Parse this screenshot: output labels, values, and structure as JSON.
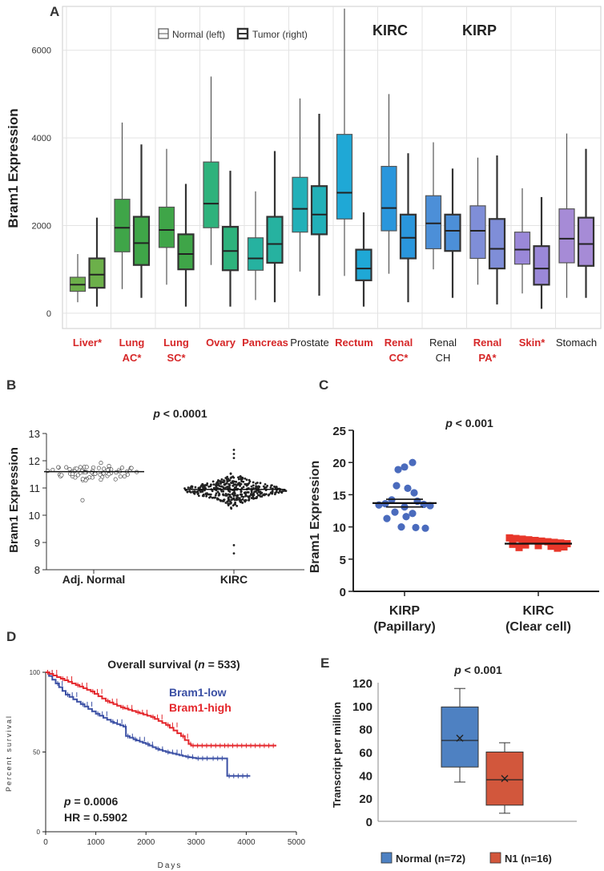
{
  "chart_data": [
    {
      "panel": "A",
      "type": "box",
      "ylabel": "Bram1 Expression",
      "ylim": [
        -350,
        7000
      ],
      "yticks": [
        0,
        2000,
        4000,
        6000
      ],
      "legend": {
        "normal": "Normal (left)",
        "tumor": "Tumor (right)",
        "position": "top-center"
      },
      "header_labels": [
        "KIRC",
        "KIRP"
      ],
      "groups": [
        {
          "line1": "Liver*",
          "line2": "",
          "label_color": "#d62728",
          "color": "#6cb04a",
          "normal": {
            "min": 250,
            "q1": 500,
            "median": 650,
            "q3": 820,
            "max": 1350
          },
          "tumor": {
            "min": 150,
            "q1": 580,
            "median": 880,
            "q3": 1250,
            "max": 2180
          }
        },
        {
          "line1": "Lung",
          "line2": "AC*",
          "label_color": "#d62728",
          "color": "#3fa548",
          "normal": {
            "min": 550,
            "q1": 1400,
            "median": 1950,
            "q3": 2600,
            "max": 4350
          },
          "tumor": {
            "min": 350,
            "q1": 1100,
            "median": 1600,
            "q3": 2200,
            "max": 3850
          }
        },
        {
          "line1": "Lung",
          "line2": "SC*",
          "label_color": "#d62728",
          "color": "#3fa548",
          "normal": {
            "min": 650,
            "q1": 1500,
            "median": 1900,
            "q3": 2420,
            "max": 3750
          },
          "tumor": {
            "min": 150,
            "q1": 1000,
            "median": 1350,
            "q3": 1800,
            "max": 2950
          }
        },
        {
          "line1": "Ovary",
          "line2": "",
          "label_color": "#d62728",
          "color": "#2eb27c",
          "normal": {
            "min": 1100,
            "q1": 1950,
            "median": 2500,
            "q3": 3450,
            "max": 5400
          },
          "tumor": {
            "min": 150,
            "q1": 980,
            "median": 1420,
            "q3": 1970,
            "max": 3250
          }
        },
        {
          "line1": "Pancreas",
          "line2": "",
          "label_color": "#d62728",
          "color": "#26b2a0",
          "normal": {
            "min": 300,
            "q1": 980,
            "median": 1250,
            "q3": 1720,
            "max": 2780
          },
          "tumor": {
            "min": 250,
            "q1": 1150,
            "median": 1580,
            "q3": 2200,
            "max": 3700
          }
        },
        {
          "line1": "Prostate",
          "line2": "",
          "label_color": "#222222",
          "color": "#22b0b8",
          "normal": {
            "min": 950,
            "q1": 1850,
            "median": 2380,
            "q3": 3100,
            "max": 4900
          },
          "tumor": {
            "min": 400,
            "q1": 1800,
            "median": 2250,
            "q3": 2900,
            "max": 4550
          }
        },
        {
          "line1": "Rectum",
          "line2": "",
          "label_color": "#d62728",
          "color": "#1fa8d6",
          "normal": {
            "min": 850,
            "q1": 2150,
            "median": 2750,
            "q3": 4080,
            "max": 6950
          },
          "tumor": {
            "min": 150,
            "q1": 750,
            "median": 1020,
            "q3": 1450,
            "max": 2300
          }
        },
        {
          "line1": "Renal",
          "line2": "CC*",
          "label_color": "#d62728",
          "color": "#2a96dc",
          "normal": {
            "min": 900,
            "q1": 1880,
            "median": 2400,
            "q3": 3350,
            "max": 5000
          },
          "tumor": {
            "min": 250,
            "q1": 1250,
            "median": 1720,
            "q3": 2250,
            "max": 3650
          }
        },
        {
          "line1": "Renal",
          "line2": "CH",
          "label_color": "#222222",
          "color": "#4c8fd8",
          "normal": {
            "min": 1000,
            "q1": 1470,
            "median": 2050,
            "q3": 2680,
            "max": 3900
          },
          "tumor": {
            "min": 350,
            "q1": 1420,
            "median": 1880,
            "q3": 2250,
            "max": 3300
          }
        },
        {
          "line1": "Renal",
          "line2": "PA*",
          "label_color": "#d62728",
          "color": "#7f8ed8",
          "normal": {
            "min": 650,
            "q1": 1250,
            "median": 1880,
            "q3": 2450,
            "max": 3550
          },
          "tumor": {
            "min": 200,
            "q1": 1020,
            "median": 1470,
            "q3": 2150,
            "max": 3600
          }
        },
        {
          "line1": "Skin*",
          "line2": "",
          "label_color": "#d62728",
          "color": "#9a88d8",
          "normal": {
            "min": 450,
            "q1": 1120,
            "median": 1450,
            "q3": 1850,
            "max": 2850
          },
          "tumor": {
            "min": 100,
            "q1": 650,
            "median": 1020,
            "q3": 1530,
            "max": 2650
          }
        },
        {
          "line1": "Stomach",
          "line2": "",
          "label_color": "#222222",
          "color": "#a68bd6",
          "normal": {
            "min": 350,
            "q1": 1150,
            "median": 1700,
            "q3": 2380,
            "max": 4100
          },
          "tumor": {
            "min": 350,
            "q1": 1080,
            "median": 1580,
            "q3": 2180,
            "max": 3750
          }
        }
      ]
    },
    {
      "panel": "B",
      "type": "scatter",
      "title": "p < 0.0001",
      "p_italic": "p",
      "p_rest": " < 0.0001",
      "ylabel": "Bram1  Expression",
      "ylim": [
        8,
        13
      ],
      "yticks": [
        8,
        9,
        10,
        11,
        12,
        13
      ],
      "categories": [
        "Adj. Normal",
        "KIRC"
      ],
      "normal": {
        "mean": 11.6,
        "sd": 0.18,
        "n": 72,
        "outlier": 10.55,
        "mean_line": 11.6
      },
      "kirc": {
        "mean": 10.92,
        "sd": 0.35,
        "n": 533,
        "min": 8.6,
        "max": 12.4,
        "mean_line": 10.95
      }
    },
    {
      "panel": "C",
      "type": "scatter",
      "p_italic": "p",
      "p_rest": " < 0.001",
      "ylabel": "Bram1 Expression",
      "ylim": [
        0,
        25
      ],
      "yticks": [
        0,
        5,
        10,
        15,
        20,
        25
      ],
      "categories": [
        {
          "line1": "KIRP",
          "line2": "(Papillary)"
        },
        {
          "line1": "KIRC",
          "line2": "(Clear cell)"
        }
      ],
      "kirp": {
        "color": "#4a6bbd",
        "mean": 13.7,
        "sem_hi": 14.3,
        "sem_lo": 13.1,
        "values": [
          20,
          19.3,
          18.9,
          16.4,
          16.0,
          15.3,
          14.2,
          14.0,
          13.6,
          13.5,
          13.4,
          13.3,
          13.1,
          12.3,
          12.1,
          11.6,
          11.3,
          10.0,
          9.9,
          9.8
        ]
      },
      "kirc": {
        "color": "#e8372a",
        "mean": 7.4,
        "sem_hi": 7.6,
        "sem_lo": 7.2,
        "values": [
          8.3,
          8.2,
          8.1,
          8.0,
          7.9,
          7.8,
          7.7,
          7.6,
          7.5,
          7.4,
          7.3,
          7.2,
          7.1,
          7.0,
          6.9,
          6.8,
          6.7
        ]
      }
    },
    {
      "panel": "D",
      "type": "line",
      "title_pre": "Overall survival (",
      "title_n_italic": "n",
      "title_post": " = 533)",
      "xlabel": "Days",
      "ylabel": "Percent survival",
      "xlim": [
        0,
        5000
      ],
      "ylim": [
        0,
        100
      ],
      "xticks": [
        0,
        1000,
        2000,
        3000,
        4000,
        5000
      ],
      "yticks": [
        0,
        50,
        100
      ],
      "pvalue_italic": "p",
      "pvalue_rest": " = 0.0006",
      "hr": "HR = 0.5902",
      "series": [
        {
          "name": "Bram1-low",
          "color": "#3a4fa4",
          "x": [
            0,
            200,
            400,
            700,
            1000,
            1300,
            1550,
            1600,
            1750,
            2000,
            2200,
            2400,
            2800,
            3000,
            3300,
            3580,
            3620,
            4080
          ],
          "y": [
            100,
            93,
            86,
            80,
            74,
            69,
            66,
            60,
            58,
            55,
            52,
            50,
            47,
            46,
            46,
            46,
            35,
            35
          ]
        },
        {
          "name": "Bram1-high",
          "color": "#e4262b",
          "x": [
            0,
            300,
            600,
            900,
            1200,
            1500,
            1800,
            2100,
            2400,
            2700,
            2850,
            2900,
            3600,
            4600
          ],
          "y": [
            100,
            96,
            92,
            88,
            82,
            78,
            75,
            72,
            67,
            60,
            55,
            54,
            54,
            54
          ]
        }
      ]
    },
    {
      "panel": "E",
      "type": "box",
      "p_italic": "p",
      "p_rest": " < 0.001",
      "ylabel": "Transcript per million",
      "ylim": [
        0,
        120
      ],
      "yticks": [
        0,
        20,
        40,
        60,
        80,
        100,
        120
      ],
      "legend": [
        {
          "name": "Normal (n=72)",
          "color": "#4e81c2"
        },
        {
          "name": "N1 (n=16)",
          "color": "#d2573c"
        }
      ],
      "boxes": [
        {
          "name": "Normal (n=72)",
          "color": "#4e81c2",
          "min": 34,
          "q1": 47,
          "median": 70,
          "q3": 99,
          "max": 115,
          "mean": 72
        },
        {
          "name": "N1 (n=16)",
          "color": "#d2573c",
          "min": 7,
          "q1": 14,
          "median": 36,
          "q3": 60,
          "max": 68,
          "mean": 37
        }
      ]
    }
  ],
  "panel_labels": {
    "a": "A",
    "b": "B",
    "c": "C",
    "d": "D",
    "e": "E"
  }
}
